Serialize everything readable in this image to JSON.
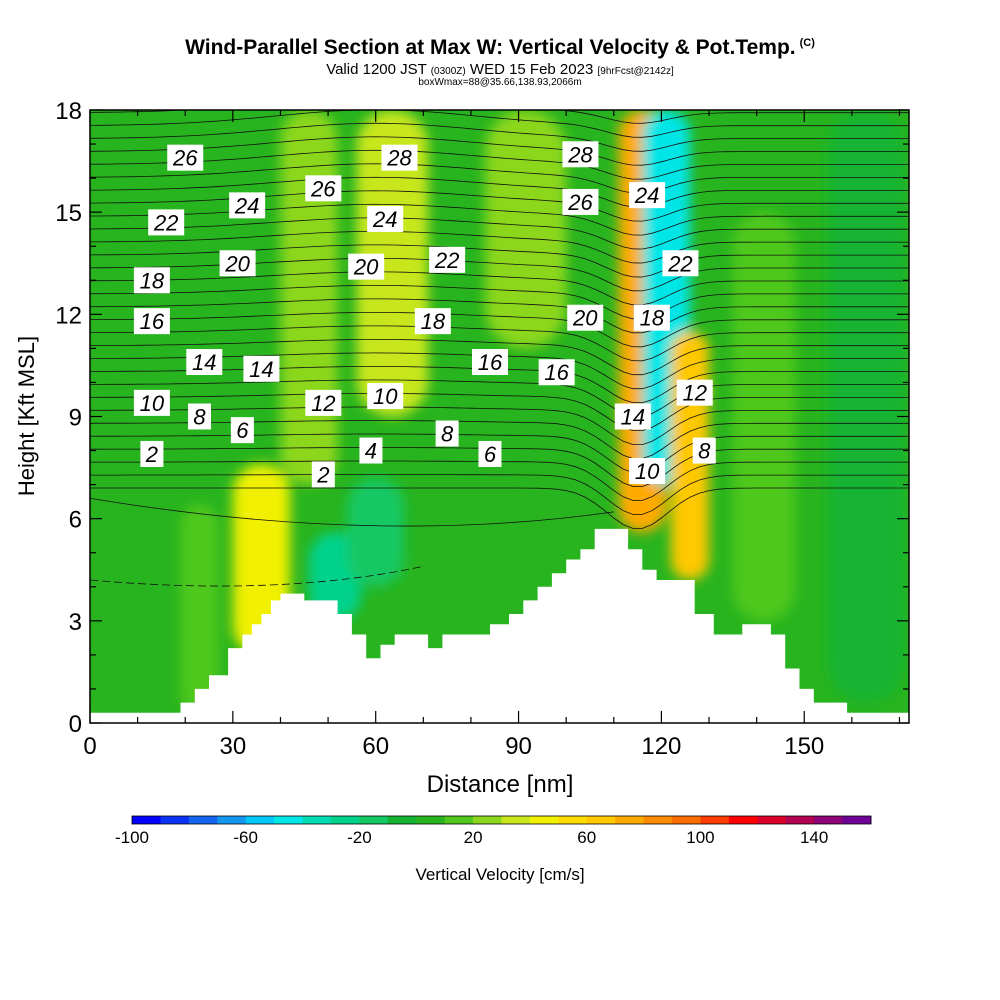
{
  "title": {
    "main": "Wind-Parallel Section at Max W: Vertical Velocity & Pot.Temp.",
    "copyright": "(C)",
    "valid_prefix": "Valid 1200 JST",
    "valid_utc": "(0300Z)",
    "valid_date": "WED 15 Feb 2023",
    "forecast": "[9hrFcst@2142z]",
    "boxline": "boxWmax=88@35.66,138.93,2066m"
  },
  "chart_data": {
    "type": "heatmap",
    "xlabel": "Distance [nm]",
    "ylabel": "Height [Kft MSL]",
    "xlim": [
      0,
      172
    ],
    "ylim": [
      0,
      18
    ],
    "x_ticks": [
      0,
      30,
      60,
      90,
      120,
      150
    ],
    "y_ticks": [
      0,
      3,
      6,
      9,
      12,
      15,
      18
    ],
    "terrain_kft": [
      [
        0,
        0.3
      ],
      [
        19,
        0.3
      ],
      [
        19,
        0.6
      ],
      [
        22,
        0.6
      ],
      [
        22,
        1.0
      ],
      [
        25,
        1.0
      ],
      [
        25,
        1.4
      ],
      [
        29,
        1.4
      ],
      [
        29,
        2.2
      ],
      [
        32,
        2.2
      ],
      [
        32,
        2.6
      ],
      [
        34,
        2.6
      ],
      [
        34,
        2.9
      ],
      [
        36,
        2.9
      ],
      [
        36,
        3.2
      ],
      [
        38,
        3.2
      ],
      [
        38,
        3.6
      ],
      [
        40,
        3.6
      ],
      [
        40,
        3.8
      ],
      [
        45,
        3.8
      ],
      [
        45,
        3.6
      ],
      [
        52,
        3.6
      ],
      [
        52,
        3.2
      ],
      [
        55,
        3.2
      ],
      [
        55,
        2.6
      ],
      [
        58,
        2.6
      ],
      [
        58,
        1.9
      ],
      [
        61,
        1.9
      ],
      [
        61,
        2.3
      ],
      [
        64,
        2.3
      ],
      [
        64,
        2.6
      ],
      [
        71,
        2.6
      ],
      [
        71,
        2.2
      ],
      [
        74,
        2.2
      ],
      [
        74,
        2.6
      ],
      [
        84,
        2.6
      ],
      [
        84,
        2.9
      ],
      [
        88,
        2.9
      ],
      [
        88,
        3.2
      ],
      [
        91,
        3.2
      ],
      [
        91,
        3.6
      ],
      [
        94,
        3.6
      ],
      [
        94,
        4.0
      ],
      [
        97,
        4.0
      ],
      [
        97,
        4.4
      ],
      [
        100,
        4.4
      ],
      [
        100,
        4.8
      ],
      [
        103,
        4.8
      ],
      [
        103,
        5.1
      ],
      [
        106,
        5.1
      ],
      [
        106,
        5.7
      ],
      [
        113,
        5.7
      ],
      [
        113,
        5.1
      ],
      [
        116,
        5.1
      ],
      [
        116,
        4.5
      ],
      [
        119,
        4.5
      ],
      [
        119,
        4.2
      ],
      [
        127,
        4.2
      ],
      [
        127,
        3.2
      ],
      [
        131,
        3.2
      ],
      [
        131,
        2.6
      ],
      [
        137,
        2.6
      ],
      [
        137,
        2.9
      ],
      [
        143,
        2.9
      ],
      [
        143,
        2.6
      ],
      [
        146,
        2.6
      ],
      [
        146,
        1.6
      ],
      [
        149,
        1.6
      ],
      [
        149,
        1.0
      ],
      [
        152,
        1.0
      ],
      [
        152,
        0.6
      ],
      [
        159,
        0.6
      ],
      [
        159,
        0.3
      ],
      [
        172,
        0.3
      ]
    ],
    "vertical_velocity_cells_cm_s": [
      {
        "x": [
          19,
          27
        ],
        "y": [
          0.3,
          6.4
        ],
        "w": 12
      },
      {
        "x": [
          30,
          42
        ],
        "y": [
          2.0,
          7.6
        ],
        "w": 42
      },
      {
        "x": [
          46,
          57
        ],
        "y": [
          3.0,
          5.6
        ],
        "w": -30
      },
      {
        "x": [
          54,
          66
        ],
        "y": [
          4.0,
          7.2
        ],
        "w": -15
      },
      {
        "x": [
          40,
          52
        ],
        "y": [
          7.0,
          18.0
        ],
        "w": 25
      },
      {
        "x": [
          56,
          71
        ],
        "y": [
          9.0,
          18.0
        ],
        "w": 35
      },
      {
        "x": [
          83,
          100
        ],
        "y": [
          11.0,
          18.0
        ],
        "w": 28
      },
      {
        "x": [
          111,
          121
        ],
        "y": [
          5.6,
          18.0
        ],
        "w": 70
      },
      {
        "x": [
          116,
          126
        ],
        "y": [
          7.0,
          18.0
        ],
        "w": -45
      },
      {
        "x": [
          122,
          130
        ],
        "y": [
          4.2,
          11.5
        ],
        "w": 65
      },
      {
        "x": [
          135,
          148
        ],
        "y": [
          3.0,
          15.0
        ],
        "w": 15
      },
      {
        "x": [
          155,
          171
        ],
        "y": [
          0.6,
          18.0
        ],
        "w": -10
      }
    ],
    "potential_temperature_labels_degC": [
      {
        "x": 20,
        "y": 16.6,
        "v": "26"
      },
      {
        "x": 33,
        "y": 15.2,
        "v": "24"
      },
      {
        "x": 16,
        "y": 14.7,
        "v": "22"
      },
      {
        "x": 31,
        "y": 13.5,
        "v": "20"
      },
      {
        "x": 13,
        "y": 13.0,
        "v": "18"
      },
      {
        "x": 13,
        "y": 11.8,
        "v": "16"
      },
      {
        "x": 24,
        "y": 10.6,
        "v": "14"
      },
      {
        "x": 36,
        "y": 10.4,
        "v": "14"
      },
      {
        "x": 13,
        "y": 9.4,
        "v": "10"
      },
      {
        "x": 23,
        "y": 9.0,
        "v": "8"
      },
      {
        "x": 32,
        "y": 8.6,
        "v": "6"
      },
      {
        "x": 13,
        "y": 7.9,
        "v": "2"
      },
      {
        "x": 49,
        "y": 15.7,
        "v": "26"
      },
      {
        "x": 65,
        "y": 16.6,
        "v": "28"
      },
      {
        "x": 62,
        "y": 14.8,
        "v": "24"
      },
      {
        "x": 58,
        "y": 13.4,
        "v": "20"
      },
      {
        "x": 75,
        "y": 13.6,
        "v": "22"
      },
      {
        "x": 72,
        "y": 11.8,
        "v": "18"
      },
      {
        "x": 84,
        "y": 10.6,
        "v": "16"
      },
      {
        "x": 98,
        "y": 10.3,
        "v": "16"
      },
      {
        "x": 49,
        "y": 9.4,
        "v": "12"
      },
      {
        "x": 62,
        "y": 9.6,
        "v": "10"
      },
      {
        "x": 75,
        "y": 8.5,
        "v": "8"
      },
      {
        "x": 84,
        "y": 7.9,
        "v": "6"
      },
      {
        "x": 59,
        "y": 8.0,
        "v": "4"
      },
      {
        "x": 49,
        "y": 7.3,
        "v": "2"
      },
      {
        "x": 103,
        "y": 16.7,
        "v": "28"
      },
      {
        "x": 103,
        "y": 15.3,
        "v": "26"
      },
      {
        "x": 117,
        "y": 15.5,
        "v": "24"
      },
      {
        "x": 124,
        "y": 13.5,
        "v": "22"
      },
      {
        "x": 104,
        "y": 11.9,
        "v": "20"
      },
      {
        "x": 118,
        "y": 11.9,
        "v": "18"
      },
      {
        "x": 114,
        "y": 9.0,
        "v": "14"
      },
      {
        "x": 127,
        "y": 9.7,
        "v": "12"
      },
      {
        "x": 117,
        "y": 7.4,
        "v": "10"
      },
      {
        "x": 129,
        "y": 8.0,
        "v": "8"
      }
    ],
    "colorbar": {
      "label": "Vertical Velocity [cm/s]",
      "min": -100,
      "max": 160,
      "step": 10,
      "tick_values": [
        -100,
        -60,
        -20,
        20,
        60,
        100,
        140
      ],
      "tick_labels": [
        "-100",
        "-60",
        "-20",
        "20",
        "60",
        "100",
        "140"
      ],
      "colors": [
        "#0000ff",
        "#0a32f5",
        "#1464f0",
        "#1496f0",
        "#00c8ff",
        "#00e6e6",
        "#00dcb4",
        "#00d28c",
        "#14c864",
        "#14b432",
        "#28b41e",
        "#50c81e",
        "#8cd71e",
        "#c8e61e",
        "#f0f000",
        "#ffdc00",
        "#ffc800",
        "#ffaa00",
        "#ff8c00",
        "#ff6e00",
        "#ff3c00",
        "#ff0000",
        "#dc0028",
        "#b40050",
        "#8c0078",
        "#6e0096"
      ]
    }
  }
}
